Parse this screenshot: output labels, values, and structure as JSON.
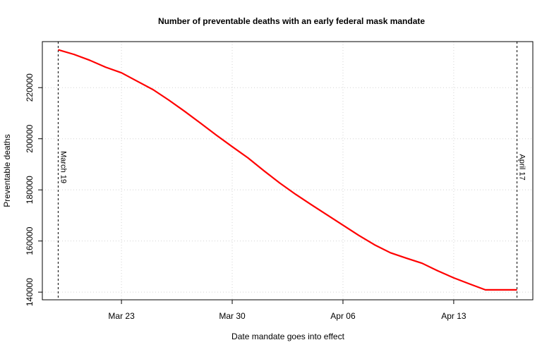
{
  "chart_data": {
    "type": "line",
    "title": "Number of preventable deaths with an early federal mask mandate",
    "xlabel": "Date mandate goes into effect",
    "ylabel": "Preventable deaths",
    "x_tick_labels": [
      "Mar 23",
      "Mar 30",
      "Apr 06",
      "Apr 13"
    ],
    "y_ticks": [
      140000,
      160000,
      180000,
      200000,
      220000
    ],
    "y_tick_labels": [
      "140000",
      "160000",
      "180000",
      "200000",
      "220000"
    ],
    "ylim": [
      137000,
      238000
    ],
    "xlim": [
      "2020-03-18",
      "2020-04-18"
    ],
    "grid": true,
    "line_color": "#ff0000",
    "reference_lines": [
      {
        "x": "2020-03-19",
        "label": "March 19"
      },
      {
        "x": "2020-04-17",
        "label": "April 17"
      }
    ],
    "series": [
      {
        "x": [
          "2020-03-19",
          "2020-03-20",
          "2020-03-21",
          "2020-03-22",
          "2020-03-23",
          "2020-03-24",
          "2020-03-25",
          "2020-03-26",
          "2020-03-27",
          "2020-03-28",
          "2020-03-29",
          "2020-03-30",
          "2020-03-31",
          "2020-04-01",
          "2020-04-02",
          "2020-04-03",
          "2020-04-04",
          "2020-04-05",
          "2020-04-06",
          "2020-04-07",
          "2020-04-08",
          "2020-04-09",
          "2020-04-10",
          "2020-04-11",
          "2020-04-12",
          "2020-04-13",
          "2020-04-14",
          "2020-04-15",
          "2020-04-16",
          "2020-04-17"
        ],
        "y": [
          234800,
          233000,
          230700,
          228000,
          225800,
          222500,
          219200,
          215100,
          210700,
          206100,
          201400,
          196900,
          192500,
          187500,
          182700,
          178300,
          174200,
          170200,
          166200,
          162200,
          158500,
          155400,
          153300,
          151300,
          148300,
          145600,
          143200,
          140900,
          140900,
          140900
        ]
      }
    ]
  }
}
